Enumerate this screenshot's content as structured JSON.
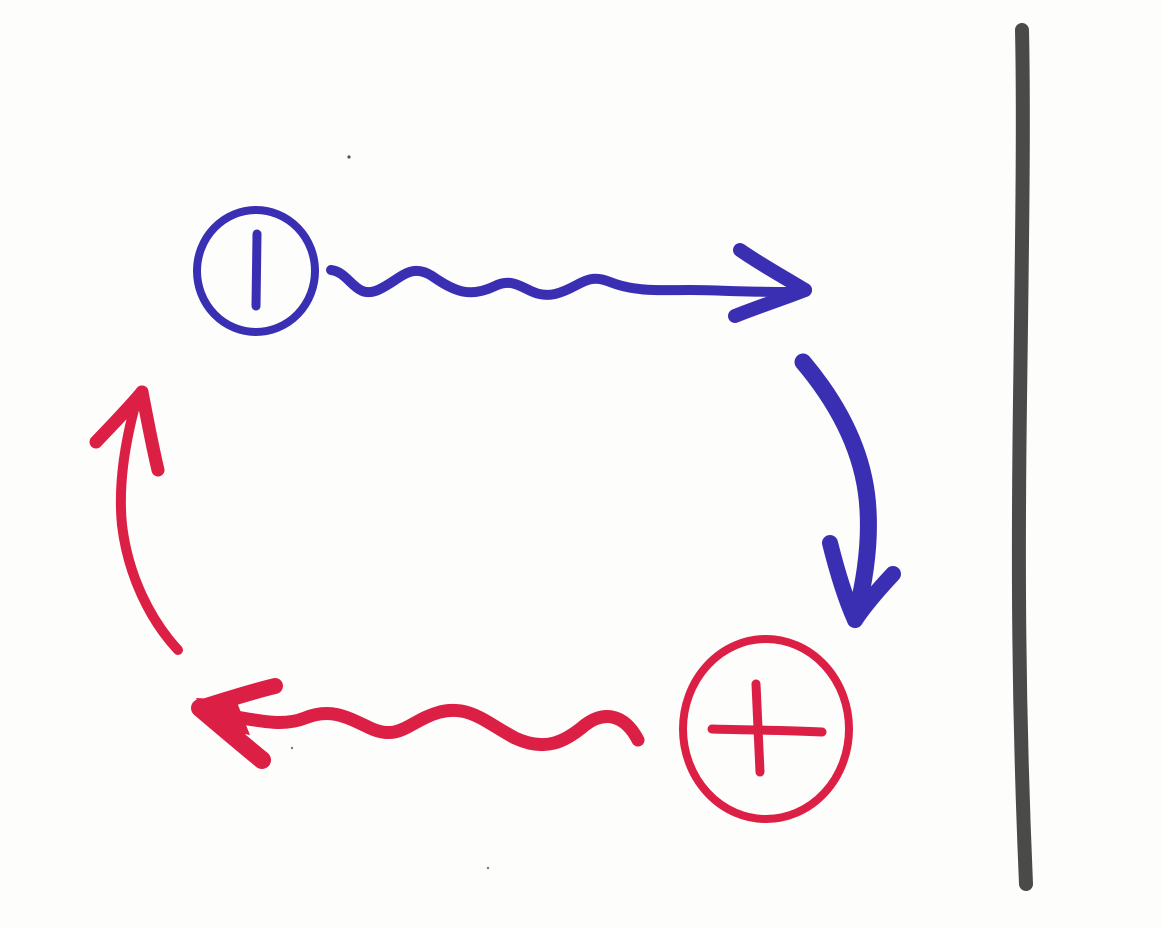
{
  "colors": {
    "background": "#fdfdfb",
    "minus_charge": "#3a2fb2",
    "plus_charge": "#dc1f45",
    "wall": "#4a4a4a"
  },
  "elements": {
    "minus_charge": {
      "icon": "minus-charge-icon",
      "glyph": "circle-with-bar"
    },
    "plus_charge": {
      "icon": "plus-charge-icon",
      "glyph": "circle-with-cross"
    },
    "wavy_arrow_top": {
      "icon": "wavy-arrow-right-icon",
      "direction": "right"
    },
    "curved_arrow_right": {
      "icon": "curved-arrow-down-icon",
      "direction": "down"
    },
    "wavy_arrow_bottom": {
      "icon": "wavy-arrow-left-icon",
      "direction": "left"
    },
    "curved_arrow_left": {
      "icon": "curved-arrow-up-icon",
      "direction": "up"
    },
    "wall": {
      "icon": "vertical-wall-line"
    }
  }
}
